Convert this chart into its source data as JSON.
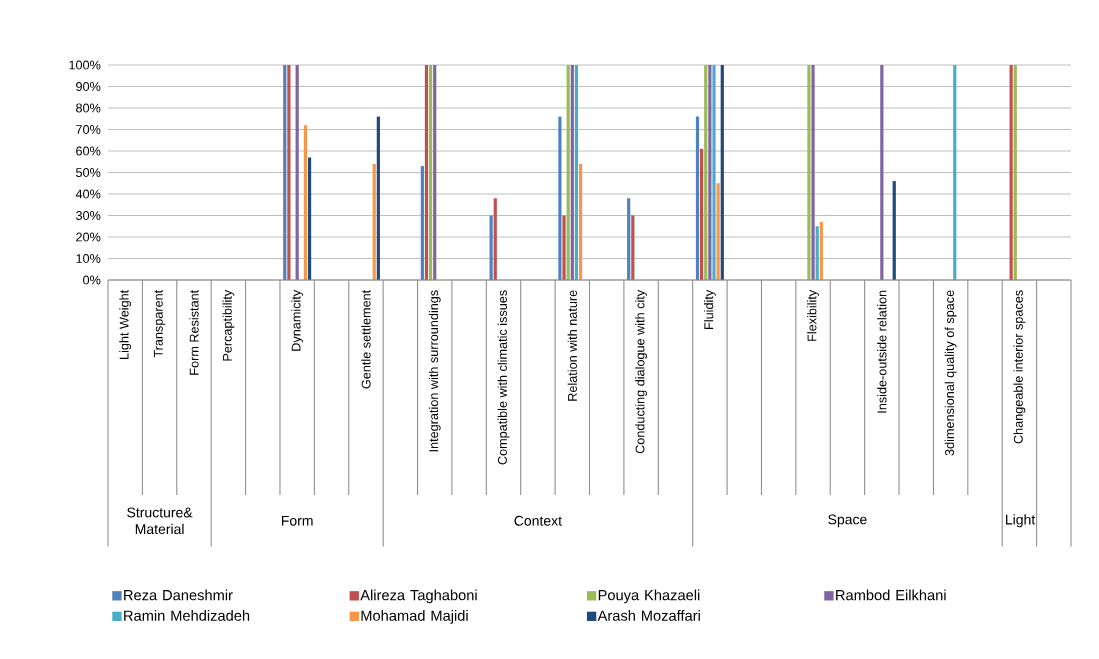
{
  "chart_data": {
    "type": "bar",
    "categories": [
      "Light Weight",
      "Transparent",
      "Form Resistant",
      "Percaptibility",
      null,
      "Dynamicity",
      null,
      "Gentle settlement",
      null,
      "Integration with surroundings",
      null,
      "Compatible with climatic issues",
      null,
      "Relation with nature",
      null,
      "Conducting dialogue with city",
      null,
      "Fluidity",
      null,
      null,
      "Flexibility",
      null,
      "Inside-outside relation",
      null,
      "3dimensional quality of space",
      null,
      "Changeable interior spaces",
      null
    ],
    "series": [
      {
        "name": "Reza Daneshmir",
        "color": "#4f81bd",
        "values": [
          null,
          null,
          null,
          null,
          null,
          100,
          null,
          null,
          null,
          53,
          null,
          30,
          null,
          76,
          null,
          38,
          null,
          76,
          null,
          null,
          null,
          null,
          null,
          null,
          null,
          null,
          null,
          null
        ]
      },
      {
        "name": "Alireza Taghaboni",
        "color": "#c0504d",
        "values": [
          null,
          null,
          null,
          null,
          null,
          100,
          null,
          null,
          null,
          100,
          null,
          38,
          null,
          30,
          null,
          30,
          null,
          61,
          null,
          null,
          null,
          null,
          null,
          null,
          null,
          null,
          100,
          null
        ]
      },
      {
        "name": "Pouya Khazaeli",
        "color": "#9bbb59",
        "values": [
          null,
          null,
          null,
          null,
          null,
          null,
          null,
          null,
          null,
          100,
          null,
          null,
          null,
          100,
          null,
          null,
          null,
          100,
          null,
          null,
          100,
          null,
          null,
          null,
          null,
          null,
          100,
          null
        ]
      },
      {
        "name": "Rambod Eilkhani",
        "color": "#8064a2",
        "values": [
          null,
          null,
          null,
          null,
          null,
          100,
          null,
          null,
          null,
          100,
          null,
          null,
          null,
          100,
          null,
          null,
          null,
          100,
          null,
          null,
          100,
          null,
          100,
          null,
          null,
          null,
          null,
          null
        ]
      },
      {
        "name": "Ramin Mehdizadeh",
        "color": "#4bacc6",
        "values": [
          null,
          null,
          null,
          null,
          null,
          null,
          null,
          null,
          null,
          null,
          null,
          null,
          null,
          100,
          null,
          null,
          null,
          100,
          null,
          null,
          25,
          null,
          null,
          null,
          100,
          null,
          null,
          null
        ]
      },
      {
        "name": "Mohamad Majidi",
        "color": "#f79646",
        "values": [
          null,
          null,
          null,
          null,
          null,
          72,
          null,
          54,
          null,
          null,
          null,
          null,
          null,
          54,
          null,
          null,
          null,
          45,
          null,
          null,
          27,
          null,
          null,
          null,
          null,
          null,
          null,
          null
        ]
      },
      {
        "name": "Arash Mozaffari",
        "color": "#1f497d",
        "values": [
          null,
          null,
          null,
          null,
          null,
          57,
          null,
          76,
          null,
          null,
          null,
          null,
          null,
          null,
          null,
          null,
          null,
          100,
          null,
          null,
          null,
          null,
          46,
          null,
          null,
          null,
          null,
          null
        ]
      }
    ],
    "ylim": [
      0,
      100
    ],
    "yticks": [
      {
        "value": 0,
        "label": "0%"
      },
      {
        "value": 10,
        "label": "10%"
      },
      {
        "value": 20,
        "label": "20%"
      },
      {
        "value": 30,
        "label": "30%"
      },
      {
        "value": 40,
        "label": "40%"
      },
      {
        "value": 50,
        "label": "50%"
      },
      {
        "value": 60,
        "label": "60%"
      },
      {
        "value": 70,
        "label": "70%"
      },
      {
        "value": 80,
        "label": "80%"
      },
      {
        "value": 90,
        "label": "90%"
      },
      {
        "value": 100,
        "label": "100%"
      }
    ],
    "annotations": [
      "Structure& Material",
      "Form",
      "Context",
      "Space",
      "Light"
    ],
    "grid": "y",
    "legend": "bottom"
  }
}
